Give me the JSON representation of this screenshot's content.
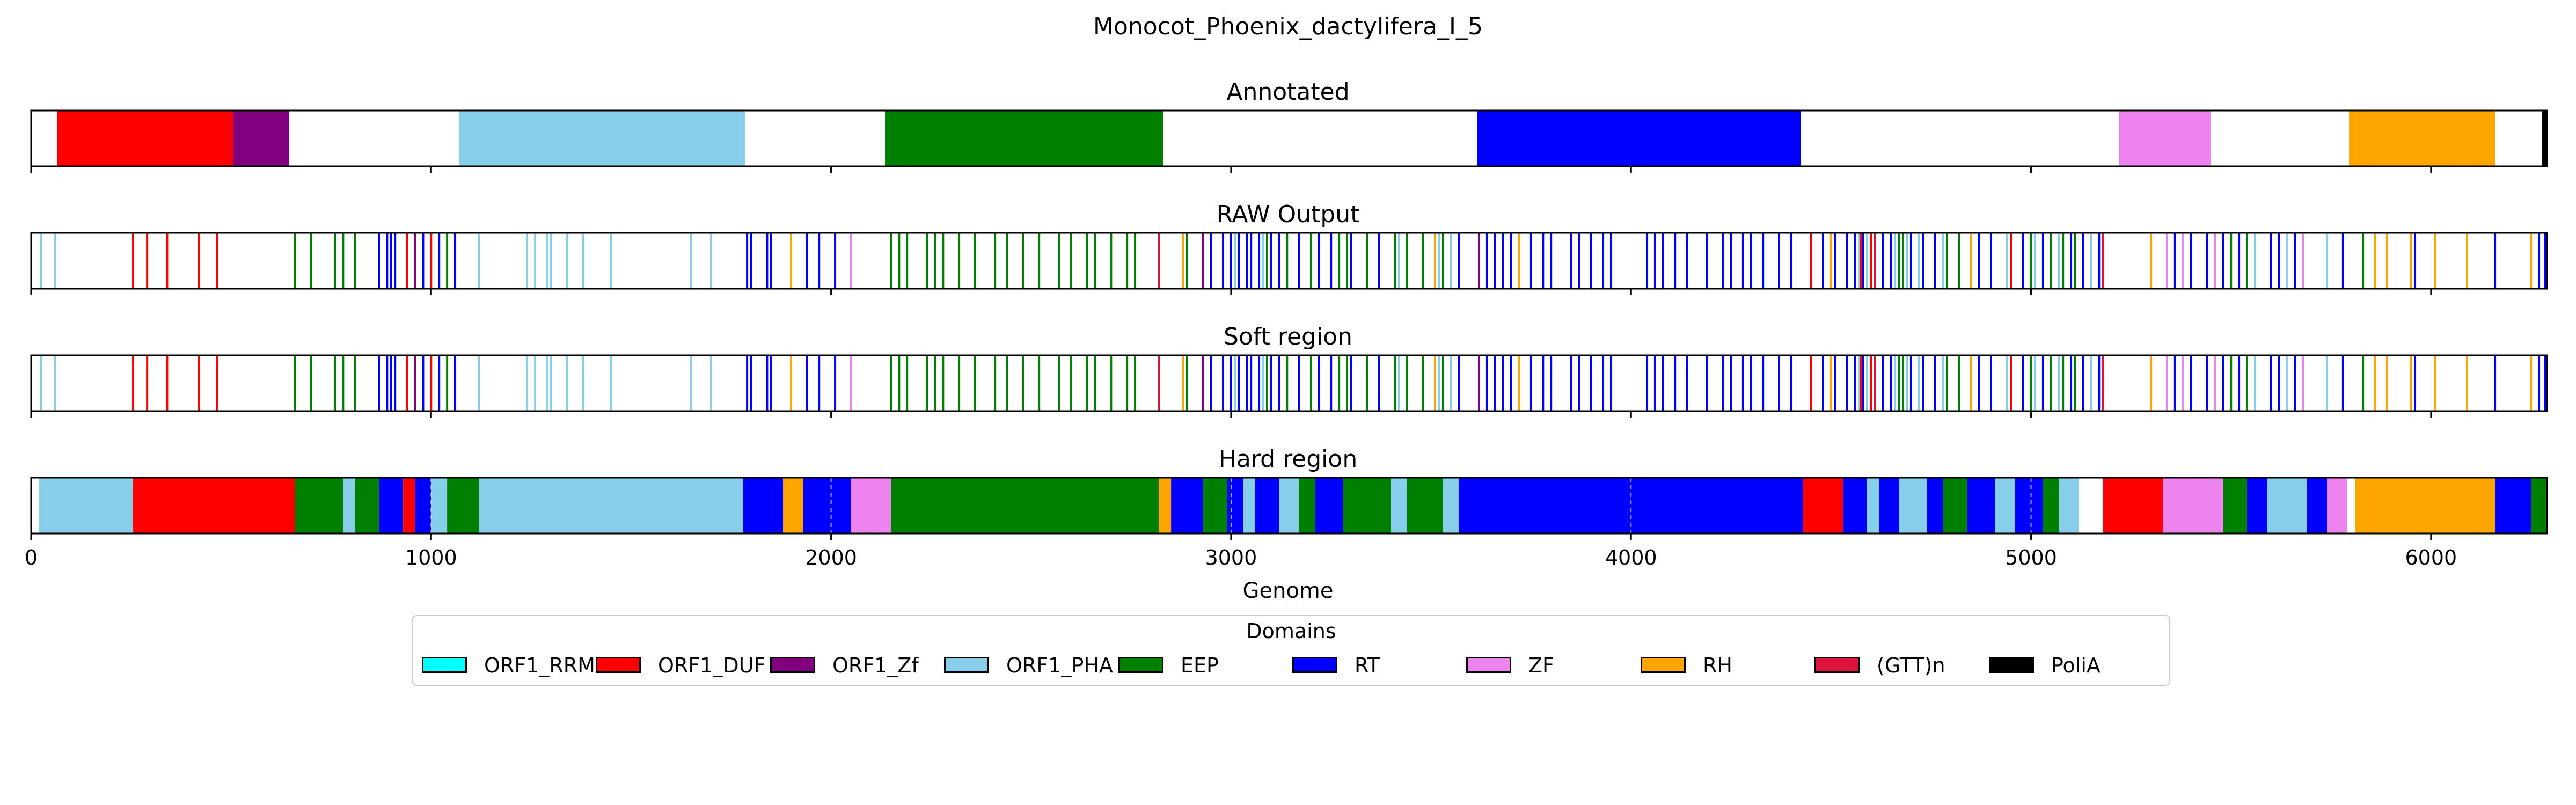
{
  "chart_data": {
    "type": "genome-track",
    "title": "Monocot_Phoenix_dactylifera_I_5",
    "xlabel": "Genome",
    "xlim": [
      0,
      6290
    ],
    "xticks": [
      0,
      1000,
      2000,
      3000,
      4000,
      5000,
      6000
    ],
    "xtick_labels": [
      "0",
      "1000",
      "2000",
      "3000",
      "4000",
      "5000",
      "6000"
    ],
    "legend_title": "Domains",
    "legend_position": "bottom-center",
    "domains": [
      {
        "name": "ORF1_RRM",
        "color": "#00ffff"
      },
      {
        "name": "ORF1_DUF",
        "color": "#ff0000"
      },
      {
        "name": "ORF1_Zf",
        "color": "#800080"
      },
      {
        "name": "ORF1_PHA",
        "color": "#87ceeb"
      },
      {
        "name": "EEP",
        "color": "#008000"
      },
      {
        "name": "RT",
        "color": "#0000ff"
      },
      {
        "name": "ZF",
        "color": "#ee82ee"
      },
      {
        "name": "RH",
        "color": "#ffa500"
      },
      {
        "name": "(GTT)n",
        "color": "#dc143c"
      },
      {
        "name": "PoliA",
        "color": "#000000"
      }
    ],
    "tracks": [
      {
        "title": "Annotated",
        "kind": "segments",
        "segments": [
          {
            "domain": "ORF1_DUF",
            "start": 65,
            "end": 505
          },
          {
            "domain": "ORF1_Zf",
            "start": 505,
            "end": 645
          },
          {
            "domain": "ORF1_PHA",
            "start": 1070,
            "end": 1785
          },
          {
            "domain": "EEP",
            "start": 2135,
            "end": 2830
          },
          {
            "domain": "RT",
            "start": 3615,
            "end": 4425
          },
          {
            "domain": "ZF",
            "start": 5220,
            "end": 5450
          },
          {
            "domain": "RH",
            "start": 5795,
            "end": 6160
          },
          {
            "domain": "PoliA",
            "start": 6278,
            "end": 6290
          }
        ]
      },
      {
        "title": "RAW Output",
        "kind": "lines",
        "lines": [
          {
            "domain": "ORF1_PHA",
            "x": [
              25,
              60,
              1120,
              1240,
              1260,
              1290,
              1300,
              1340,
              1380,
              1450,
              1650,
              1700,
              3010,
              3080,
              3420,
              3520,
              3550,
              4570,
              4590,
              4660,
              4690,
              4720,
              4780,
              4940,
              5010,
              5070,
              5150,
              5560,
              5600,
              5640,
              5740
            ]
          },
          {
            "domain": "ORF1_DUF",
            "x": [
              255,
              290,
              340,
              420,
              465,
              940,
              1000,
              4450,
              4575,
              4600,
              4950
            ]
          },
          {
            "domain": "EEP",
            "x": [
              660,
              700,
              760,
              780,
              810,
              1040,
              1060,
              2150,
              2170,
              2190,
              2240,
              2260,
              2280,
              2320,
              2360,
              2410,
              2440,
              2480,
              2520,
              2570,
              2600,
              2640,
              2660,
              2700,
              2740,
              2760,
              2890,
              3020,
              3090,
              3140,
              3200,
              3270,
              3290,
              3340,
              3410,
              3440,
              3480,
              3530,
              4670,
              4680,
              4790,
              4820,
              5000,
              5050,
              5080,
              5110,
              5500,
              5540,
              5830
            ]
          },
          {
            "domain": "RT",
            "x": [
              870,
              890,
              900,
              910,
              960,
              980,
              1020,
              1060,
              1790,
              1800,
              1840,
              1850,
              1940,
              1970,
              2010,
              2950,
              2980,
              3000,
              3020,
              3040,
              3050,
              3070,
              3100,
              3120,
              3170,
              3220,
              3250,
              3300,
              3370,
              3570,
              3620,
              3640,
              3660,
              3680,
              3700,
              3750,
              3780,
              3800,
              3850,
              3870,
              3900,
              3930,
              3950,
              4040,
              4060,
              4080,
              4110,
              4140,
              4190,
              4230,
              4250,
              4280,
              4300,
              4330,
              4370,
              4400,
              4480,
              4510,
              4540,
              4560,
              4580,
              4630,
              4650,
              4700,
              4730,
              4760,
              4870,
              4900,
              4980,
              5030,
              5100,
              5130,
              5170,
              5360,
              5400,
              5440,
              5480,
              5520,
              5600,
              5620,
              5660,
              5780,
              5960,
              6160,
              6270,
              6285
            ]
          },
          {
            "domain": "ZF",
            "x": [
              2050,
              5340,
              5380,
              5460,
              5680
            ]
          },
          {
            "domain": "RH",
            "x": [
              1900,
              2880,
              3510,
              3720,
              4500,
              4850,
              5300,
              5860,
              5890,
              5950,
              6010,
              6090,
              6250
            ]
          },
          {
            "domain": "ORF1_Zf",
            "x": [
              960,
              2930,
              3620
            ]
          },
          {
            "domain": "(GTT)n",
            "x": [
              2820,
              4610,
              5180
            ]
          }
        ]
      },
      {
        "title": "Soft region",
        "kind": "lines",
        "lines": [
          {
            "domain": "ORF1_PHA",
            "x": [
              25,
              60,
              1120,
              1240,
              1260,
              1290,
              1300,
              1340,
              1380,
              1450,
              1650,
              1700,
              3010,
              3080,
              3420,
              3520,
              3550,
              4570,
              4590,
              4660,
              4690,
              4720,
              4780,
              4940,
              5010,
              5070,
              5150,
              5560,
              5600,
              5640,
              5740
            ]
          },
          {
            "domain": "ORF1_DUF",
            "x": [
              255,
              290,
              340,
              420,
              465,
              940,
              1000,
              4450,
              4575,
              4600,
              4950
            ]
          },
          {
            "domain": "EEP",
            "x": [
              660,
              700,
              760,
              780,
              810,
              1040,
              1060,
              2150,
              2170,
              2190,
              2240,
              2260,
              2280,
              2320,
              2360,
              2410,
              2440,
              2480,
              2520,
              2570,
              2600,
              2640,
              2660,
              2700,
              2740,
              2760,
              2890,
              3020,
              3090,
              3140,
              3200,
              3270,
              3290,
              3340,
              3410,
              3440,
              3480,
              3530,
              4670,
              4680,
              4790,
              4820,
              5000,
              5050,
              5080,
              5110,
              5500,
              5540,
              5830
            ]
          },
          {
            "domain": "RT",
            "x": [
              870,
              890,
              900,
              910,
              960,
              980,
              1020,
              1060,
              1790,
              1800,
              1840,
              1850,
              1940,
              1970,
              2010,
              2950,
              2980,
              3000,
              3020,
              3040,
              3050,
              3070,
              3100,
              3120,
              3170,
              3220,
              3250,
              3300,
              3370,
              3570,
              3620,
              3640,
              3660,
              3680,
              3700,
              3750,
              3780,
              3800,
              3850,
              3870,
              3900,
              3930,
              3950,
              4040,
              4060,
              4080,
              4110,
              4140,
              4190,
              4230,
              4250,
              4280,
              4300,
              4330,
              4370,
              4400,
              4480,
              4510,
              4540,
              4560,
              4580,
              4630,
              4650,
              4700,
              4730,
              4760,
              4870,
              4900,
              4980,
              5030,
              5100,
              5130,
              5170,
              5360,
              5400,
              5440,
              5480,
              5520,
              5600,
              5620,
              5660,
              5780,
              5960,
              6160,
              6270,
              6285
            ]
          },
          {
            "domain": "ZF",
            "x": [
              2050,
              5340,
              5380,
              5460,
              5680
            ]
          },
          {
            "domain": "RH",
            "x": [
              1900,
              2880,
              3510,
              3720,
              4500,
              4850,
              5300,
              5860,
              5890,
              5950,
              6010,
              6090,
              6250
            ]
          },
          {
            "domain": "ORF1_Zf",
            "x": [
              960,
              2930,
              3620
            ]
          },
          {
            "domain": "(GTT)n",
            "x": [
              2820,
              4610,
              5180
            ]
          }
        ]
      },
      {
        "title": "Hard region",
        "kind": "segments",
        "segments": [
          {
            "domain": "ORF1_PHA",
            "start": 20,
            "end": 255
          },
          {
            "domain": "ORF1_DUF",
            "start": 255,
            "end": 660
          },
          {
            "domain": "EEP",
            "start": 660,
            "end": 780
          },
          {
            "domain": "ORF1_PHA",
            "start": 780,
            "end": 810
          },
          {
            "domain": "EEP",
            "start": 810,
            "end": 870
          },
          {
            "domain": "RT",
            "start": 870,
            "end": 930
          },
          {
            "domain": "ORF1_DUF",
            "start": 930,
            "end": 960
          },
          {
            "domain": "RT",
            "start": 960,
            "end": 1000
          },
          {
            "domain": "ORF1_PHA",
            "start": 1000,
            "end": 1040
          },
          {
            "domain": "EEP",
            "start": 1040,
            "end": 1120
          },
          {
            "domain": "ORF1_PHA",
            "start": 1120,
            "end": 1780
          },
          {
            "domain": "RT",
            "start": 1780,
            "end": 1880
          },
          {
            "domain": "RH",
            "start": 1880,
            "end": 1930
          },
          {
            "domain": "RT",
            "start": 1930,
            "end": 2050
          },
          {
            "domain": "ZF",
            "start": 2050,
            "end": 2150
          },
          {
            "domain": "EEP",
            "start": 2150,
            "end": 2820
          },
          {
            "domain": "RH",
            "start": 2820,
            "end": 2850
          },
          {
            "domain": "RT",
            "start": 2850,
            "end": 2930
          },
          {
            "domain": "EEP",
            "start": 2930,
            "end": 2990
          },
          {
            "domain": "RT",
            "start": 2990,
            "end": 3030
          },
          {
            "domain": "ORF1_PHA",
            "start": 3030,
            "end": 3060
          },
          {
            "domain": "RT",
            "start": 3060,
            "end": 3120
          },
          {
            "domain": "ORF1_PHA",
            "start": 3120,
            "end": 3170
          },
          {
            "domain": "EEP",
            "start": 3170,
            "end": 3210
          },
          {
            "domain": "RT",
            "start": 3210,
            "end": 3280
          },
          {
            "domain": "EEP",
            "start": 3280,
            "end": 3400
          },
          {
            "domain": "ORF1_PHA",
            "start": 3400,
            "end": 3440
          },
          {
            "domain": "EEP",
            "start": 3440,
            "end": 3530
          },
          {
            "domain": "ORF1_PHA",
            "start": 3530,
            "end": 3570
          },
          {
            "domain": "RT",
            "start": 3570,
            "end": 4430
          },
          {
            "domain": "ORF1_DUF",
            "start": 4430,
            "end": 4530
          },
          {
            "domain": "RT",
            "start": 4530,
            "end": 4590
          },
          {
            "domain": "ORF1_PHA",
            "start": 4590,
            "end": 4620
          },
          {
            "domain": "RT",
            "start": 4620,
            "end": 4670
          },
          {
            "domain": "ORF1_PHA",
            "start": 4670,
            "end": 4740
          },
          {
            "domain": "RT",
            "start": 4740,
            "end": 4780
          },
          {
            "domain": "EEP",
            "start": 4780,
            "end": 4840
          },
          {
            "domain": "RT",
            "start": 4840,
            "end": 4910
          },
          {
            "domain": "ORF1_PHA",
            "start": 4910,
            "end": 4960
          },
          {
            "domain": "RT",
            "start": 4960,
            "end": 5030
          },
          {
            "domain": "EEP",
            "start": 5030,
            "end": 5070
          },
          {
            "domain": "ORF1_PHA",
            "start": 5070,
            "end": 5120
          },
          {
            "domain": "ORF1_DUF",
            "start": 5180,
            "end": 5330
          },
          {
            "domain": "ZF",
            "start": 5330,
            "end": 5480
          },
          {
            "domain": "EEP",
            "start": 5480,
            "end": 5540
          },
          {
            "domain": "RT",
            "start": 5540,
            "end": 5590
          },
          {
            "domain": "ORF1_PHA",
            "start": 5590,
            "end": 5690
          },
          {
            "domain": "RT",
            "start": 5690,
            "end": 5740
          },
          {
            "domain": "ZF",
            "start": 5740,
            "end": 5790
          },
          {
            "domain": "RH",
            "start": 5810,
            "end": 6160
          },
          {
            "domain": "RT",
            "start": 6160,
            "end": 6250
          },
          {
            "domain": "EEP",
            "start": 6250,
            "end": 6290
          }
        ]
      }
    ]
  }
}
